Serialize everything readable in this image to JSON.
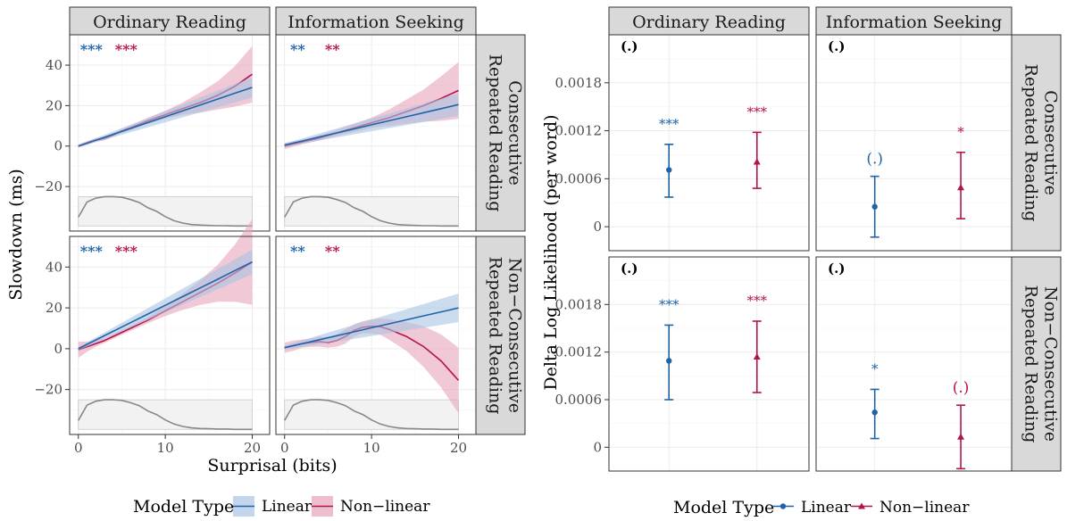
{
  "colors": {
    "linear": "#1f63a8",
    "nonlinear": "#b5134e",
    "linear_fill": "#a9c4e2",
    "nonlinear_fill": "#e8a3b9"
  },
  "chart_data": [
    {
      "type": "line",
      "facet_cols": [
        "Ordinary Reading",
        "Information Seeking"
      ],
      "facet_rows": [
        "Consecutive Repeated Reading",
        "Non−Consecutive Repeated Reading"
      ],
      "xlabel": "Surprisal (bits)",
      "ylabel": "Slowdown (ms)",
      "xlim": [
        -1,
        22
      ],
      "ylim": [
        -42,
        55
      ],
      "x_ticks": [
        0,
        10,
        20
      ],
      "y_ticks": [
        -20,
        0,
        20,
        40
      ],
      "legend": {
        "title": "Model Type",
        "entries": [
          "Linear",
          "Non−linear"
        ],
        "placement": "bottom"
      },
      "series_names": [
        "Linear",
        "Non−linear"
      ],
      "panels": [
        {
          "col": "Ordinary Reading",
          "row": "Consecutive Repeated Reading",
          "sig": [
            "***",
            "***"
          ],
          "linear": {
            "x": [
              0,
              20
            ],
            "y": [
              0,
              29
            ],
            "ci_halfwidth": [
              0.5,
              5
            ]
          },
          "nonlinear": {
            "x": [
              0,
              1,
              2,
              3,
              4,
              5,
              6,
              8,
              10,
              12,
              14,
              16,
              18,
              20
            ],
            "y": [
              0,
              1.5,
              3,
              3.8,
              5.5,
              7.5,
              9,
              12.5,
              15.5,
              18.5,
              21.5,
              25,
              29.5,
              35.5
            ],
            "ci_halfwidth": [
              0.8,
              1,
              1,
              1,
              1,
              1,
              1.2,
              1.5,
              2,
              3,
              5,
              7,
              10,
              14
            ]
          },
          "density": [
            0.3,
            0.82,
            0.95,
            1,
            1,
            0.98,
            0.9,
            0.8,
            0.62,
            0.5,
            0.32,
            0.18,
            0.1,
            0.05,
            0.03,
            0.02,
            0.01,
            0.01,
            0.0,
            0.0,
            0.0
          ]
        },
        {
          "col": "Information Seeking",
          "row": "Consecutive Repeated Reading",
          "sig": [
            "**",
            "**"
          ],
          "linear": {
            "x": [
              0,
              20
            ],
            "y": [
              0.5,
              20.5
            ],
            "ci_halfwidth": [
              0.8,
              5.5
            ]
          },
          "nonlinear": {
            "x": [
              0,
              2,
              4,
              6,
              8,
              10,
              12,
              14,
              16,
              18,
              20
            ],
            "y": [
              0,
              2,
              4,
              6.5,
              9,
              11.5,
              14,
              17,
              20,
              23.5,
              27.5
            ],
            "ci_halfwidth": [
              1.5,
              1.2,
              1.2,
              1.5,
              2,
              2.5,
              4,
              6,
              8,
              11,
              14
            ]
          },
          "density": [
            0.3,
            0.82,
            0.95,
            1,
            1,
            0.98,
            0.9,
            0.8,
            0.62,
            0.5,
            0.32,
            0.18,
            0.1,
            0.05,
            0.03,
            0.02,
            0.01,
            0.01,
            0.0,
            0.0,
            0.0
          ]
        },
        {
          "col": "Ordinary Reading",
          "row": "Non−Consecutive Repeated Reading",
          "sig": [
            "***",
            "***"
          ],
          "linear": {
            "x": [
              0,
              20
            ],
            "y": [
              0,
              42.5
            ],
            "ci_halfwidth": [
              0.8,
              6
            ]
          },
          "nonlinear": {
            "x": [
              0,
              1,
              2,
              3,
              4,
              5,
              6,
              8,
              10,
              12,
              14,
              16,
              18,
              20
            ],
            "y": [
              -0.5,
              1,
              2.5,
              4,
              6,
              8,
              10,
              14,
              18.5,
              23,
              27.5,
              32,
              37,
              42.5
            ],
            "ci_halfwidth": [
              4,
              2.5,
              1.5,
              1.2,
              1.2,
              1.2,
              1.3,
              1.5,
              2.5,
              4,
              6,
              9,
              14,
              21
            ]
          },
          "density": [
            0.3,
            0.82,
            0.95,
            1,
            1,
            0.98,
            0.9,
            0.8,
            0.62,
            0.5,
            0.32,
            0.18,
            0.1,
            0.05,
            0.03,
            0.02,
            0.01,
            0.01,
            0.0,
            0.0,
            0.0
          ]
        },
        {
          "col": "Information Seeking",
          "row": "Non−Consecutive Repeated Reading",
          "sig": [
            "**",
            "**"
          ],
          "linear": {
            "x": [
              0,
              20
            ],
            "y": [
              0.5,
              20
            ],
            "ci_halfwidth": [
              1,
              7
            ]
          },
          "nonlinear": {
            "x": [
              0,
              1,
              2,
              3,
              4,
              5,
              6,
              7,
              8,
              9,
              10,
              11,
              12,
              14,
              16,
              18,
              20
            ],
            "y": [
              0.5,
              1.5,
              2.5,
              3,
              3.5,
              3,
              4,
              6,
              9,
              10.5,
              11,
              10.8,
              9.5,
              6,
              1,
              -6,
              -15.5
            ],
            "ci_halfwidth": [
              2.5,
              2.5,
              2,
              2,
              2.5,
              2.5,
              3,
              3.5,
              3,
              3,
              3.5,
              4,
              5,
              7,
              10,
              13,
              16
            ]
          },
          "density": [
            0.3,
            0.82,
            0.95,
            1,
            1,
            0.98,
            0.9,
            0.8,
            0.62,
            0.5,
            0.32,
            0.18,
            0.1,
            0.05,
            0.03,
            0.02,
            0.01,
            0.01,
            0.0,
            0.0,
            0.0
          ]
        }
      ]
    },
    {
      "type": "scatter",
      "facet_cols": [
        "Ordinary Reading",
        "Information Seeking"
      ],
      "facet_rows": [
        "Consecutive Repeated Reading",
        "Non−Consecutive Repeated Reading"
      ],
      "ylabel": "Delta Log Likelihood (per word)",
      "y_ticks": [
        0,
        0.0006,
        0.0012,
        0.0018
      ],
      "y_tick_labels": [
        "0",
        "0.0006",
        "0.0012",
        "0.0018"
      ],
      "ylim": [
        -0.0003,
        0.0024
      ],
      "legend": {
        "title": "Model Type",
        "entries": [
          "Linear",
          "Non−linear"
        ],
        "placement": "bottom"
      },
      "panels": [
        {
          "col": "Ordinary Reading",
          "row": "Consecutive Repeated Reading",
          "corner": "(.)",
          "points": [
            {
              "model": "Linear",
              "y": 0.00071,
              "lo": 0.00037,
              "hi": 0.00103,
              "sig": "***"
            },
            {
              "model": "Non−linear",
              "y": 0.00081,
              "lo": 0.00048,
              "hi": 0.00118,
              "sig": "***"
            }
          ]
        },
        {
          "col": "Information Seeking",
          "row": "Consecutive Repeated Reading",
          "corner": "(.)",
          "points": [
            {
              "model": "Linear",
              "y": 0.00025,
              "lo": -0.00013,
              "hi": 0.00063,
              "sig": "(.)"
            },
            {
              "model": "Non−linear",
              "y": 0.00049,
              "lo": 0.0001,
              "hi": 0.00093,
              "sig": "*"
            }
          ]
        },
        {
          "col": "Ordinary Reading",
          "row": "Non−Consecutive Repeated Reading",
          "corner": "(.)",
          "points": [
            {
              "model": "Linear",
              "y": 0.00109,
              "lo": 0.0006,
              "hi": 0.00154,
              "sig": "***"
            },
            {
              "model": "Non−linear",
              "y": 0.00114,
              "lo": 0.00069,
              "hi": 0.00159,
              "sig": "***"
            }
          ]
        },
        {
          "col": "Information Seeking",
          "row": "Non−Consecutive Repeated Reading",
          "corner": "(.)",
          "points": [
            {
              "model": "Linear",
              "y": 0.00044,
              "lo": 0.00011,
              "hi": 0.00073,
              "sig": "*"
            },
            {
              "model": "Non−linear",
              "y": 0.00013,
              "lo": -0.00027,
              "hi": 0.00053,
              "sig": "(.)"
            }
          ]
        }
      ]
    }
  ]
}
